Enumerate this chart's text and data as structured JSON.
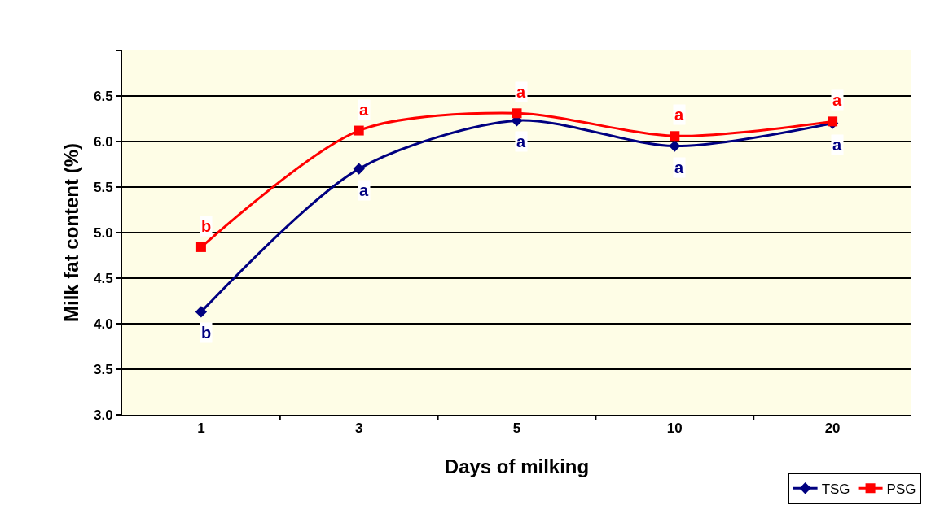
{
  "chart_data": {
    "type": "line",
    "xlabel": "Days of milking",
    "ylabel": "Milk fat content (%)",
    "categories": [
      "1",
      "3",
      "5",
      "10",
      "20"
    ],
    "series": [
      {
        "name": "TSG",
        "color": "#000080",
        "marker": "diamond",
        "values": [
          4.13,
          5.7,
          6.23,
          5.95,
          6.2
        ]
      },
      {
        "name": "PSG",
        "color": "#ff0000",
        "marker": "square",
        "values": [
          4.84,
          6.12,
          6.31,
          6.06,
          6.22
        ]
      }
    ],
    "ylim": [
      3.0,
      7.0
    ],
    "yticks": [
      {
        "value": 3.0,
        "label": "3.0"
      },
      {
        "value": 3.5,
        "label": "3.5"
      },
      {
        "value": 4.0,
        "label": "4.0"
      },
      {
        "value": 4.5,
        "label": "4.5"
      },
      {
        "value": 5.0,
        "label": "5.0"
      },
      {
        "value": 5.5,
        "label": "5.5"
      },
      {
        "value": 6.0,
        "label": "6.0"
      },
      {
        "value": 6.5,
        "label": "6.5"
      },
      {
        "value": 7.0,
        "label": null
      }
    ],
    "grid": "y",
    "legend": "bottom right",
    "line_style": "solid",
    "annotations": [
      {
        "text": "b",
        "x": "1",
        "y": 4.84
      },
      {
        "text": "b",
        "x": "1",
        "y": 4.13
      },
      {
        "text": "a",
        "x": "3",
        "y": 6.12
      },
      {
        "text": "a",
        "x": "3",
        "y": 5.7
      },
      {
        "text": "a",
        "x": "5",
        "y": 6.31
      },
      {
        "text": "a",
        "x": "5",
        "y": 6.23
      },
      {
        "text": "a",
        "x": "10",
        "y": 6.06
      },
      {
        "text": "a",
        "x": "10",
        "y": 5.95
      },
      {
        "text": "a",
        "x": "20",
        "y": 6.22
      },
      {
        "text": "a",
        "x": "20",
        "y": 6.2
      }
    ]
  }
}
